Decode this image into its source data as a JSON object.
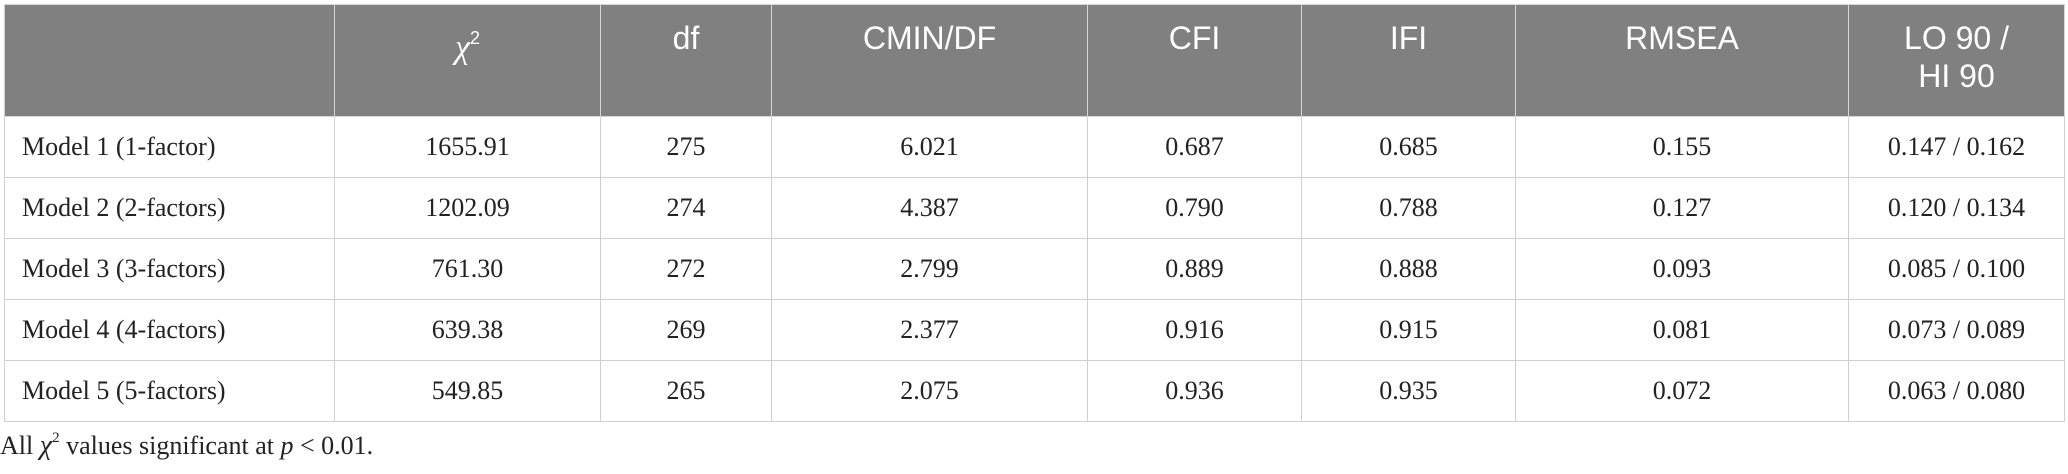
{
  "table": {
    "headers": {
      "col0": "",
      "chi_symbol": "χ",
      "chi_exp": "2",
      "col2": "df",
      "col3": "CMIN/DF",
      "col4": "CFI",
      "col5": "IFI",
      "col6": "RMSEA",
      "col7_line1": "LO 90 /",
      "col7_line2": "HI 90"
    },
    "rows": [
      [
        "Model 1 (1-factor)",
        "1655.91",
        "275",
        "6.021",
        "0.687",
        "0.685",
        "0.155",
        "0.147 / 0.162"
      ],
      [
        "Model 2 (2-factors)",
        "1202.09",
        "274",
        "4.387",
        "0.790",
        "0.788",
        "0.127",
        "0.120 / 0.134"
      ],
      [
        "Model 3 (3-factors)",
        "761.30",
        "272",
        "2.799",
        "0.889",
        "0.888",
        "0.093",
        "0.085 / 0.100"
      ],
      [
        "Model 4 (4-factors)",
        "639.38",
        "269",
        "2.377",
        "0.916",
        "0.915",
        "0.081",
        "0.073 / 0.089"
      ],
      [
        "Model 5 (5-factors)",
        "549.85",
        "265",
        "2.075",
        "0.936",
        "0.935",
        "0.072",
        "0.063 / 0.080"
      ]
    ]
  },
  "footnote": {
    "prefix": "All ",
    "chi": "χ",
    "exp": "2",
    "middle": " values significant at ",
    "p": "p",
    "suffix": " < 0.01."
  },
  "colors": {
    "header_bg": "#7f807f",
    "header_text": "#ffffff",
    "border": "#cfcfcf"
  }
}
